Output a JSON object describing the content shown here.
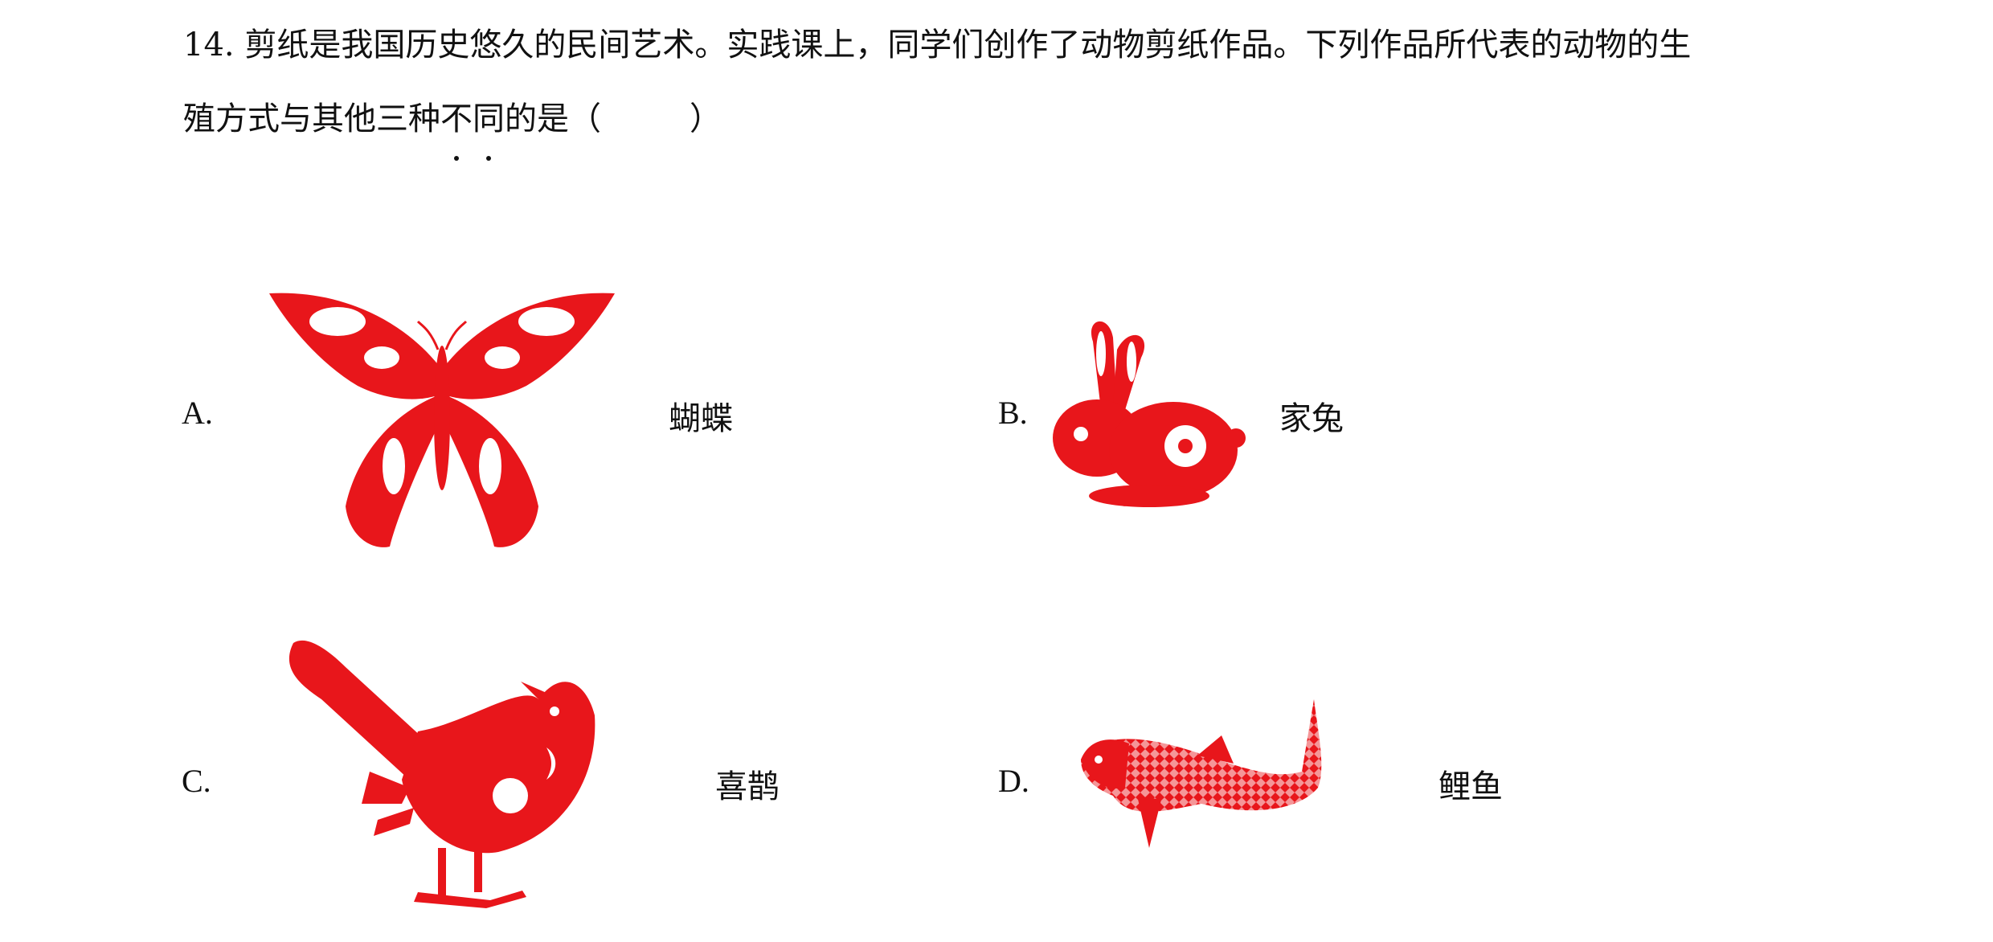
{
  "question": {
    "number": "14.",
    "line1": "剪纸是我国历史悠久的民间艺术。实践课上，同学们创作了动物剪纸作品。下列作品所代表的动物的生",
    "line2_before": "殖方式与其他三种",
    "line2_emph_1": "不",
    "line2_emph_2": "同",
    "line2_after": "的是（",
    "line2_close": "）"
  },
  "options": [
    {
      "letter": "A.",
      "name": "蝴蝶",
      "icon": "butterfly-papercut"
    },
    {
      "letter": "B.",
      "name": "家兔",
      "icon": "rabbit-papercut"
    },
    {
      "letter": "C.",
      "name": "喜鹊",
      "icon": "magpie-papercut"
    },
    {
      "letter": "D.",
      "name": "鲤鱼",
      "icon": "carp-papercut"
    }
  ],
  "colors": {
    "papercut_red": "#e8161b",
    "text": "#111111"
  }
}
